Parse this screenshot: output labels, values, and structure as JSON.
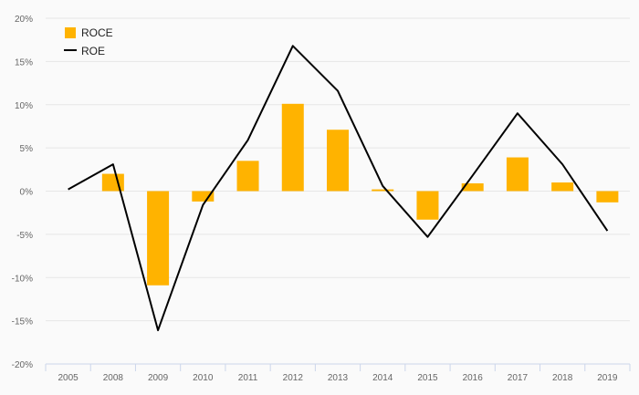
{
  "chart_data": {
    "type": "bar",
    "categories": [
      "2005",
      "2008",
      "2009",
      "2010",
      "2011",
      "2012",
      "2013",
      "2014",
      "2015",
      "2016",
      "2017",
      "2018",
      "2019"
    ],
    "series": [
      {
        "name": "ROCE",
        "type": "bar",
        "color": "#FFB300",
        "values": [
          0,
          2.0,
          -10.9,
          -1.2,
          3.5,
          10.1,
          7.1,
          0.2,
          -3.3,
          0.9,
          3.9,
          1.0,
          -1.3
        ]
      },
      {
        "name": "ROE",
        "type": "line",
        "color": "#000000",
        "values": [
          0.2,
          3.1,
          -16.1,
          -1.6,
          5.9,
          16.8,
          11.6,
          0.6,
          -5.3,
          1.8,
          9.0,
          3.1,
          -4.6
        ]
      }
    ],
    "y_ticks": [
      "-20%",
      "-15%",
      "-10%",
      "-5%",
      "0%",
      "5%",
      "10%",
      "15%",
      "20%"
    ],
    "ylim": [
      -20,
      20
    ],
    "legend": {
      "position": "top-left"
    },
    "grid": true
  }
}
